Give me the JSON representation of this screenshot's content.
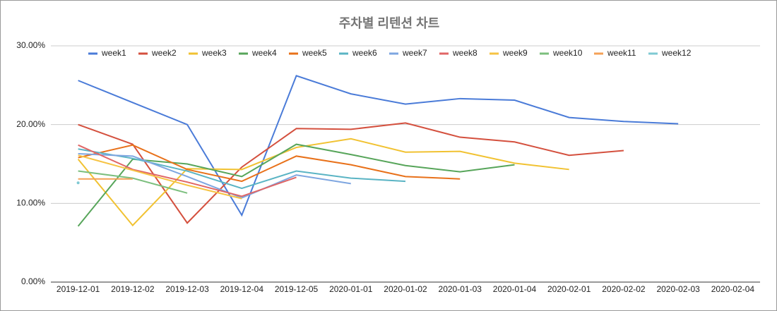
{
  "chart_data": {
    "type": "line",
    "title": "주차별 리텐션 차트",
    "categories": [
      "2019-12-01",
      "2019-12-02",
      "2019-12-03",
      "2019-12-04",
      "2019-12-05",
      "2020-01-01",
      "2020-01-02",
      "2020-01-03",
      "2020-01-04",
      "2020-02-01",
      "2020-02-02",
      "2020-02-03",
      "2020-02-04"
    ],
    "series": [
      {
        "name": "week1",
        "color": "#4a7bd8",
        "values": [
          25.6,
          22.8,
          20.0,
          8.5,
          26.2,
          23.9,
          22.6,
          23.3,
          23.1,
          20.9,
          20.4,
          20.1,
          null
        ]
      },
      {
        "name": "week2",
        "color": "#d4503e",
        "values": [
          20.0,
          17.5,
          7.5,
          14.6,
          19.5,
          19.4,
          20.2,
          18.4,
          17.8,
          16.1,
          16.7,
          null,
          null
        ]
      },
      {
        "name": "week3",
        "color": "#f1c232",
        "values": [
          15.6,
          7.2,
          14.4,
          14.3,
          17.1,
          18.2,
          16.5,
          16.6,
          15.1,
          14.3,
          null,
          null,
          null
        ]
      },
      {
        "name": "week4",
        "color": "#57a55a",
        "values": [
          7.1,
          15.6,
          15.0,
          13.4,
          17.5,
          16.2,
          14.8,
          14.0,
          14.9,
          null,
          null,
          null,
          null
        ]
      },
      {
        "name": "week5",
        "color": "#e8711a",
        "values": [
          15.8,
          17.4,
          14.3,
          12.8,
          16.0,
          14.9,
          13.4,
          13.1,
          null,
          null,
          null,
          null,
          null
        ]
      },
      {
        "name": "week6",
        "color": "#5ab4c4",
        "values": [
          16.9,
          15.7,
          14.1,
          11.9,
          14.1,
          13.2,
          12.8,
          null,
          null,
          null,
          null,
          null,
          null
        ]
      },
      {
        "name": "week7",
        "color": "#7ea6e0",
        "values": [
          16.3,
          16.0,
          13.4,
          10.7,
          13.6,
          12.5,
          null,
          null,
          null,
          null,
          null,
          null,
          null
        ]
      },
      {
        "name": "week8",
        "color": "#e06666",
        "values": [
          17.4,
          14.3,
          12.7,
          10.9,
          13.3,
          null,
          null,
          null,
          null,
          null,
          null,
          null,
          null
        ]
      },
      {
        "name": "week9",
        "color": "#f6c343",
        "values": [
          16.1,
          14.2,
          12.3,
          10.6,
          null,
          null,
          null,
          null,
          null,
          null,
          null,
          null,
          null
        ]
      },
      {
        "name": "week10",
        "color": "#7cbf7e",
        "values": [
          14.1,
          13.2,
          11.3,
          null,
          null,
          null,
          null,
          null,
          null,
          null,
          null,
          null,
          null
        ]
      },
      {
        "name": "week11",
        "color": "#f4a157",
        "values": [
          13.1,
          13.1,
          null,
          null,
          null,
          null,
          null,
          null,
          null,
          null,
          null,
          null,
          null
        ]
      },
      {
        "name": "week12",
        "color": "#7fc9d3",
        "values": [
          12.6,
          null,
          null,
          null,
          null,
          null,
          null,
          null,
          null,
          null,
          null,
          null,
          null
        ]
      }
    ],
    "ylim": [
      0,
      30
    ],
    "yticks": [
      {
        "value": 0,
        "label": "0.00%"
      },
      {
        "value": 10,
        "label": "10.00%"
      },
      {
        "value": 20,
        "label": "20.00%"
      },
      {
        "value": 30,
        "label": "30.00%"
      }
    ],
    "grid": true,
    "legend": "top"
  }
}
